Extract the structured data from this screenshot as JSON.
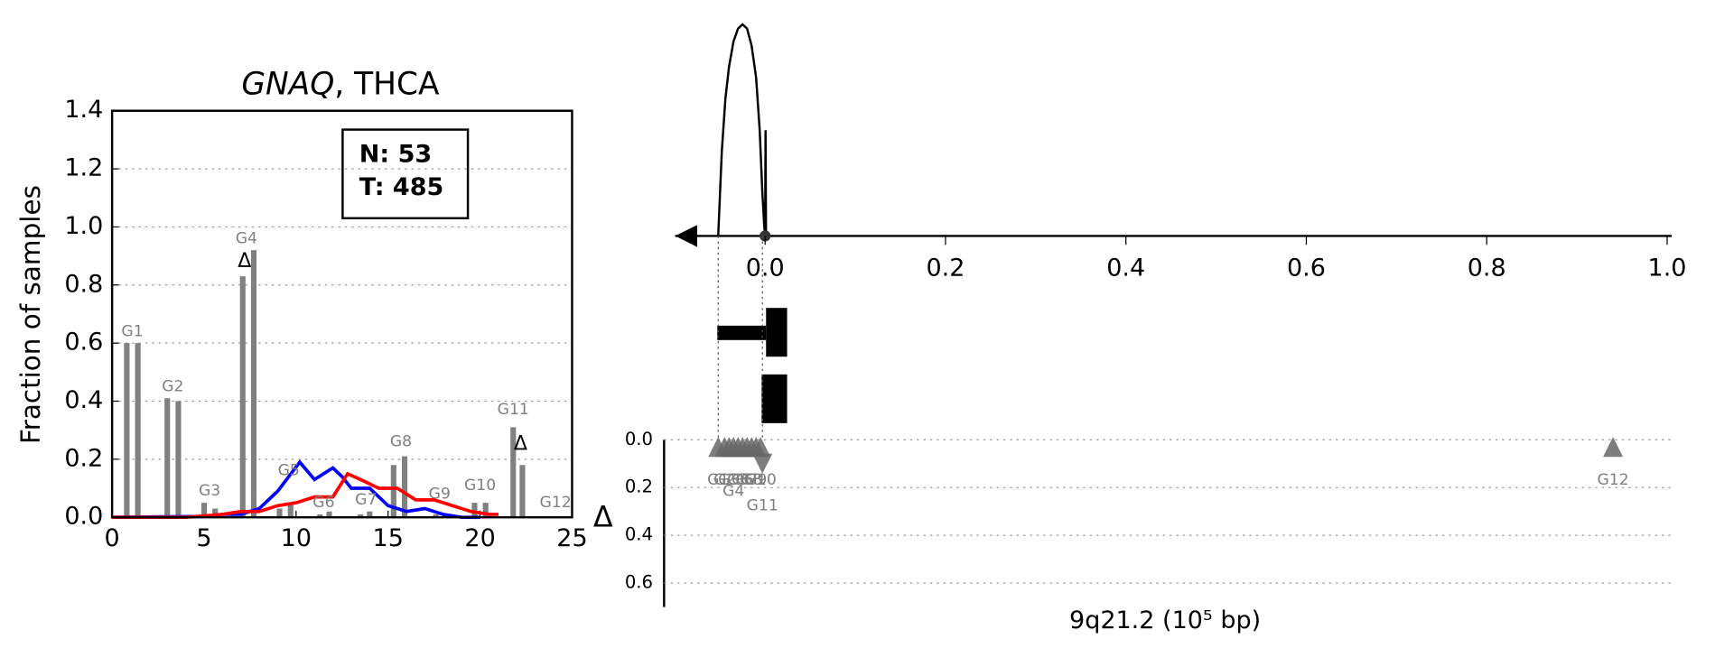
{
  "chart_data": [
    {
      "type": "bar",
      "title": [
        "GNAQ",
        ", THCA"
      ],
      "ylabel": "Fraction of samples",
      "xlim": [
        0,
        25
      ],
      "xticks": [
        0,
        5,
        10,
        15,
        20,
        25
      ],
      "ylim": [
        0,
        1.4
      ],
      "yticks": [
        {
          "value": 0,
          "label": "0.0"
        },
        {
          "value": 0.2,
          "label": "0.2"
        },
        {
          "value": 0.4,
          "label": "0.4"
        },
        {
          "value": 0.6,
          "label": "0.6"
        },
        {
          "value": 0.8,
          "label": "0.8"
        },
        {
          "value": 1.0,
          "label": "1.0"
        },
        {
          "value": 1.2,
          "label": "1.2"
        },
        {
          "value": 1.4,
          "label": "1.4"
        }
      ],
      "grid": true,
      "legend_text": [
        "N: 53",
        "T: 485"
      ],
      "bar_color": "#808080",
      "bars": {
        "x": [
          0.8,
          1.4,
          3.0,
          3.6,
          5.0,
          5.6,
          7.1,
          7.7,
          9.1,
          9.7,
          11.3,
          11.8,
          13.5,
          14.0,
          15.3,
          15.9,
          17.6,
          18.1,
          19.7,
          20.3,
          21.8,
          22.3
        ],
        "values": [
          0.6,
          0.6,
          0.41,
          0.4,
          0.05,
          0.03,
          0.83,
          0.92,
          0.03,
          0.05,
          0.01,
          0.02,
          0.01,
          0.02,
          0.18,
          0.21,
          0.01,
          0.01,
          0.05,
          0.05,
          0.31,
          0.18
        ]
      },
      "group_labels": {
        "x": [
          1.1,
          3.3,
          5.3,
          7.3,
          9.6,
          11.5,
          13.8,
          15.7,
          17.8,
          20.0,
          21.8,
          24.1
        ],
        "y": [
          0.64,
          0.45,
          0.09,
          0.96,
          0.16,
          0.05,
          0.06,
          0.26,
          0.08,
          0.11,
          0.37,
          0.05
        ],
        "labels": [
          "G1",
          "G2",
          "G3",
          "G4",
          "G5",
          "G6",
          "G7",
          "G8",
          "G9",
          "G10",
          "G11",
          "G12"
        ]
      },
      "series": [
        {
          "color": "#0000ff",
          "x": [
            0,
            5,
            6,
            7,
            8,
            9,
            10.2,
            11,
            12,
            12.5,
            13,
            14,
            15,
            16,
            17,
            18,
            19,
            20
          ],
          "values": [
            0,
            0.003,
            0.01,
            0.01,
            0.03,
            0.09,
            0.19,
            0.13,
            0.17,
            0.14,
            0.1,
            0.1,
            0.04,
            0.02,
            0.03,
            0.01,
            0,
            0
          ]
        },
        {
          "color": "#ff0000",
          "x": [
            0,
            4,
            5,
            6,
            7,
            8,
            9,
            10,
            11,
            12,
            12.8,
            13.5,
            14.5,
            15.5,
            16.5,
            17.5,
            18.5,
            19.5,
            20.5,
            21
          ],
          "values": [
            0,
            0,
            0.005,
            0.01,
            0.02,
            0.02,
            0.04,
            0.05,
            0.07,
            0.07,
            0.15,
            0.13,
            0.1,
            0.1,
            0.06,
            0.06,
            0.04,
            0.02,
            0.01,
            0.01
          ]
        }
      ],
      "delta_markers": {
        "label": "Δ",
        "x": [
          7.2,
          22.2
        ],
        "values": [
          0.88,
          0.25
        ]
      }
    },
    {
      "type": "density",
      "xlim": [
        -0.112,
        1.005
      ],
      "xticks": [
        {
          "value": 0,
          "label": "0.0"
        },
        {
          "value": 0.2,
          "label": "0.2"
        },
        {
          "value": 0.4,
          "label": "0.4"
        },
        {
          "value": 0.6,
          "label": "0.6"
        },
        {
          "value": 0.8,
          "label": "0.8"
        },
        {
          "value": 1.0,
          "label": "1.0"
        }
      ],
      "x": [
        -0.052,
        -0.048,
        -0.044,
        -0.04,
        -0.035,
        -0.03,
        -0.025,
        -0.02,
        -0.015,
        -0.01,
        -0.006,
        -0.003,
        -0.001,
        0,
        0.0005,
        0.001
      ],
      "values": [
        0,
        0.4,
        0.65,
        0.8,
        0.92,
        0.98,
        1.0,
        0.98,
        0.9,
        0.75,
        0.5,
        0.2,
        0.05,
        0,
        0.5,
        0
      ],
      "xlabel": "9q21.2 (10⁵ bp)",
      "delta": {
        "ylabel": "Δ",
        "ylim": [
          0,
          0.7
        ],
        "yticks": [
          {
            "value": 0,
            "label": "0.0"
          },
          {
            "value": 0.2,
            "label": "0.2"
          },
          {
            "value": 0.4,
            "label": "0.4"
          },
          {
            "value": 0.6,
            "label": "0.6"
          }
        ],
        "x": [
          -0.052,
          -0.045,
          -0.04,
          -0.035,
          -0.03,
          -0.025,
          -0.02,
          -0.015,
          -0.01,
          -0.005,
          -0.003,
          0.94
        ],
        "values": [
          0.03,
          0.03,
          0.03,
          0.03,
          0.03,
          0.03,
          0.03,
          0.03,
          0.03,
          0.03,
          0.1,
          0.03
        ],
        "markers": [
          "up",
          "up",
          "up",
          "up",
          "up",
          "up",
          "up",
          "up",
          "up",
          "up",
          "down",
          "up"
        ],
        "labels": [
          "G1",
          "G2",
          "G3",
          "G4",
          "G5",
          "G6",
          "G7",
          "G8",
          "G9",
          "G10",
          "G11",
          "G12"
        ],
        "color": "#666666"
      }
    }
  ]
}
